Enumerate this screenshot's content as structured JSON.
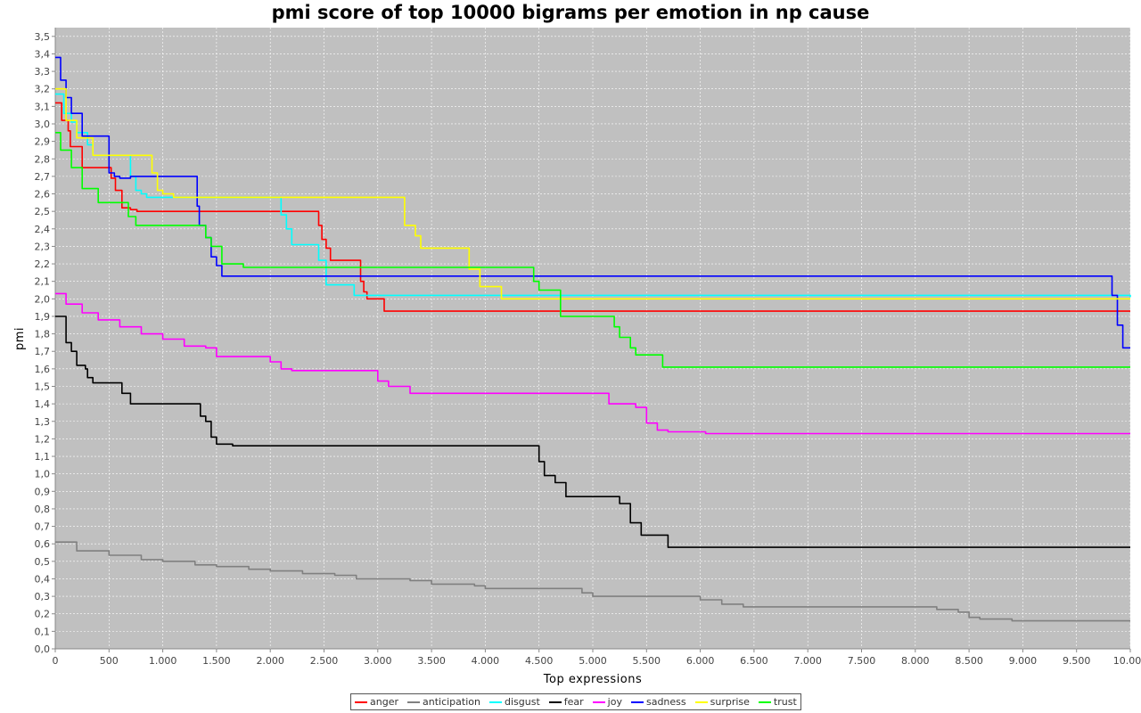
{
  "chart_data": {
    "type": "line",
    "title": "pmi score of top 10000 bigrams per emotion in np cause",
    "xlabel": "Top expressions",
    "ylabel": "pmi",
    "xlim": [
      0,
      10000
    ],
    "ylim": [
      0.0,
      3.55
    ],
    "x_ticks": [
      0,
      500,
      1000,
      1500,
      2000,
      2500,
      3000,
      3500,
      4000,
      4500,
      5000,
      5500,
      6000,
      6500,
      7000,
      7500,
      8000,
      8500,
      9000,
      9500,
      10000
    ],
    "x_tick_labels": [
      "0",
      "500",
      "1.000",
      "1.500",
      "2.000",
      "2.500",
      "3.000",
      "3.500",
      "4.000",
      "4.500",
      "5.000",
      "5.500",
      "6.000",
      "6.500",
      "7.000",
      "7.500",
      "8.000",
      "8.500",
      "9.000",
      "9.500",
      "10.000"
    ],
    "y_ticks": [
      0.0,
      0.1,
      0.2,
      0.3,
      0.4,
      0.5,
      0.6,
      0.7,
      0.8,
      0.9,
      1.0,
      1.1,
      1.2,
      1.3,
      1.4,
      1.5,
      1.6,
      1.7,
      1.8,
      1.9,
      2.0,
      2.1,
      2.2,
      2.3,
      2.4,
      2.5,
      2.6,
      2.7,
      2.8,
      2.9,
      3.0,
      3.1,
      3.2,
      3.3,
      3.4,
      3.5
    ],
    "y_tick_labels": [
      "0,0",
      "0,1",
      "0,2",
      "0,3",
      "0,4",
      "0,5",
      "0,6",
      "0,7",
      "0,8",
      "0,9",
      "1,0",
      "1,1",
      "1,2",
      "1,3",
      "1,4",
      "1,5",
      "1,6",
      "1,7",
      "1,8",
      "1,9",
      "2,0",
      "2,1",
      "2,2",
      "2,3",
      "2,4",
      "2,5",
      "2,6",
      "2,7",
      "2,8",
      "2,9",
      "3,0",
      "3,1",
      "3,2",
      "3,3",
      "3,4",
      "3,5"
    ],
    "grid": true,
    "legend_position": "bottom",
    "background_color": "#c0c0c0",
    "series": [
      {
        "name": "anger",
        "color": "#ff0000",
        "points": [
          [
            0,
            3.12
          ],
          [
            60,
            3.02
          ],
          [
            120,
            2.96
          ],
          [
            140,
            2.87
          ],
          [
            250,
            2.75
          ],
          [
            500,
            2.75
          ],
          [
            520,
            2.69
          ],
          [
            560,
            2.62
          ],
          [
            620,
            2.52
          ],
          [
            700,
            2.51
          ],
          [
            760,
            2.5
          ],
          [
            2430,
            2.5
          ],
          [
            2450,
            2.42
          ],
          [
            2480,
            2.34
          ],
          [
            2520,
            2.29
          ],
          [
            2560,
            2.22
          ],
          [
            2830,
            2.22
          ],
          [
            2840,
            2.1
          ],
          [
            2870,
            2.04
          ],
          [
            2900,
            2.0
          ],
          [
            3040,
            2.0
          ],
          [
            3060,
            1.93
          ],
          [
            10000,
            1.93
          ]
        ]
      },
      {
        "name": "anticipation",
        "color": "#808080",
        "points": [
          [
            0,
            0.61
          ],
          [
            200,
            0.56
          ],
          [
            500,
            0.535
          ],
          [
            800,
            0.51
          ],
          [
            1000,
            0.5
          ],
          [
            1300,
            0.48
          ],
          [
            1500,
            0.47
          ],
          [
            1800,
            0.455
          ],
          [
            2000,
            0.445
          ],
          [
            2300,
            0.43
          ],
          [
            2600,
            0.42
          ],
          [
            2800,
            0.4
          ],
          [
            3300,
            0.39
          ],
          [
            3500,
            0.37
          ],
          [
            3900,
            0.36
          ],
          [
            4000,
            0.345
          ],
          [
            4800,
            0.345
          ],
          [
            4900,
            0.32
          ],
          [
            5000,
            0.3
          ],
          [
            5900,
            0.3
          ],
          [
            6000,
            0.28
          ],
          [
            6200,
            0.255
          ],
          [
            6400,
            0.24
          ],
          [
            8000,
            0.24
          ],
          [
            8200,
            0.225
          ],
          [
            8400,
            0.21
          ],
          [
            8500,
            0.18
          ],
          [
            8600,
            0.17
          ],
          [
            8900,
            0.16
          ],
          [
            10000,
            0.16
          ]
        ]
      },
      {
        "name": "disgust",
        "color": "#00ffff",
        "points": [
          [
            0,
            3.17
          ],
          [
            80,
            3.06
          ],
          [
            150,
            3.01
          ],
          [
            200,
            2.95
          ],
          [
            300,
            2.88
          ],
          [
            350,
            2.82
          ],
          [
            650,
            2.82
          ],
          [
            700,
            2.7
          ],
          [
            750,
            2.62
          ],
          [
            800,
            2.6
          ],
          [
            850,
            2.58
          ],
          [
            2050,
            2.58
          ],
          [
            2100,
            2.48
          ],
          [
            2150,
            2.4
          ],
          [
            2200,
            2.31
          ],
          [
            2400,
            2.31
          ],
          [
            2450,
            2.22
          ],
          [
            2520,
            2.08
          ],
          [
            2750,
            2.08
          ],
          [
            2780,
            2.02
          ],
          [
            4100,
            2.02
          ],
          [
            9850,
            2.02
          ],
          [
            10000,
            2.01
          ]
        ]
      },
      {
        "name": "fear",
        "color": "#000000",
        "points": [
          [
            0,
            1.9
          ],
          [
            100,
            1.75
          ],
          [
            150,
            1.7
          ],
          [
            200,
            1.62
          ],
          [
            280,
            1.6
          ],
          [
            300,
            1.55
          ],
          [
            350,
            1.52
          ],
          [
            600,
            1.52
          ],
          [
            620,
            1.46
          ],
          [
            700,
            1.4
          ],
          [
            1300,
            1.4
          ],
          [
            1350,
            1.33
          ],
          [
            1400,
            1.3
          ],
          [
            1450,
            1.21
          ],
          [
            1500,
            1.17
          ],
          [
            1650,
            1.16
          ],
          [
            4450,
            1.16
          ],
          [
            4500,
            1.07
          ],
          [
            4550,
            0.99
          ],
          [
            4650,
            0.95
          ],
          [
            4750,
            0.87
          ],
          [
            5200,
            0.87
          ],
          [
            5250,
            0.83
          ],
          [
            5350,
            0.72
          ],
          [
            5450,
            0.65
          ],
          [
            5650,
            0.65
          ],
          [
            5700,
            0.58
          ],
          [
            10000,
            0.58
          ]
        ]
      },
      {
        "name": "joy",
        "color": "#ff00ff",
        "points": [
          [
            0,
            2.03
          ],
          [
            100,
            1.97
          ],
          [
            250,
            1.92
          ],
          [
            400,
            1.88
          ],
          [
            600,
            1.84
          ],
          [
            800,
            1.8
          ],
          [
            1000,
            1.77
          ],
          [
            1200,
            1.73
          ],
          [
            1400,
            1.72
          ],
          [
            1500,
            1.67
          ],
          [
            1900,
            1.67
          ],
          [
            2000,
            1.64
          ],
          [
            2100,
            1.6
          ],
          [
            2200,
            1.59
          ],
          [
            2900,
            1.59
          ],
          [
            3000,
            1.53
          ],
          [
            3100,
            1.5
          ],
          [
            3300,
            1.46
          ],
          [
            5100,
            1.46
          ],
          [
            5150,
            1.4
          ],
          [
            5400,
            1.38
          ],
          [
            5500,
            1.29
          ],
          [
            5600,
            1.25
          ],
          [
            5700,
            1.24
          ],
          [
            6050,
            1.23
          ],
          [
            10000,
            1.23
          ]
        ]
      },
      {
        "name": "sadness",
        "color": "#0000ff",
        "points": [
          [
            0,
            3.38
          ],
          [
            50,
            3.25
          ],
          [
            100,
            3.15
          ],
          [
            150,
            3.06
          ],
          [
            250,
            2.93
          ],
          [
            450,
            2.93
          ],
          [
            500,
            2.72
          ],
          [
            550,
            2.7
          ],
          [
            600,
            2.69
          ],
          [
            650,
            2.69
          ],
          [
            700,
            2.7
          ],
          [
            1300,
            2.7
          ],
          [
            1320,
            2.53
          ],
          [
            1340,
            2.42
          ],
          [
            1400,
            2.35
          ],
          [
            1450,
            2.24
          ],
          [
            1500,
            2.19
          ],
          [
            1550,
            2.13
          ],
          [
            9800,
            2.13
          ],
          [
            9830,
            2.02
          ],
          [
            9880,
            1.85
          ],
          [
            9930,
            1.72
          ],
          [
            10000,
            1.72
          ]
        ]
      },
      {
        "name": "surprise",
        "color": "#ffff00",
        "points": [
          [
            0,
            3.2
          ],
          [
            100,
            3.02
          ],
          [
            200,
            2.92
          ],
          [
            350,
            2.82
          ],
          [
            800,
            2.82
          ],
          [
            900,
            2.72
          ],
          [
            950,
            2.62
          ],
          [
            1000,
            2.6
          ],
          [
            1100,
            2.58
          ],
          [
            3200,
            2.58
          ],
          [
            3250,
            2.42
          ],
          [
            3350,
            2.36
          ],
          [
            3400,
            2.29
          ],
          [
            3750,
            2.29
          ],
          [
            3850,
            2.17
          ],
          [
            3950,
            2.07
          ],
          [
            4100,
            2.07
          ],
          [
            4150,
            2.0
          ],
          [
            10000,
            2.0
          ]
        ]
      },
      {
        "name": "trust",
        "color": "#00ff00",
        "points": [
          [
            0,
            2.95
          ],
          [
            50,
            2.85
          ],
          [
            150,
            2.75
          ],
          [
            250,
            2.63
          ],
          [
            400,
            2.55
          ],
          [
            650,
            2.55
          ],
          [
            680,
            2.47
          ],
          [
            750,
            2.42
          ],
          [
            1300,
            2.42
          ],
          [
            1400,
            2.35
          ],
          [
            1450,
            2.3
          ],
          [
            1550,
            2.2
          ],
          [
            1750,
            2.18
          ],
          [
            4420,
            2.18
          ],
          [
            4450,
            2.1
          ],
          [
            4500,
            2.05
          ],
          [
            4700,
            1.9
          ],
          [
            5100,
            1.9
          ],
          [
            5200,
            1.84
          ],
          [
            5250,
            1.78
          ],
          [
            5350,
            1.72
          ],
          [
            5400,
            1.68
          ],
          [
            5600,
            1.68
          ],
          [
            5650,
            1.61
          ],
          [
            10000,
            1.61
          ]
        ]
      }
    ]
  }
}
